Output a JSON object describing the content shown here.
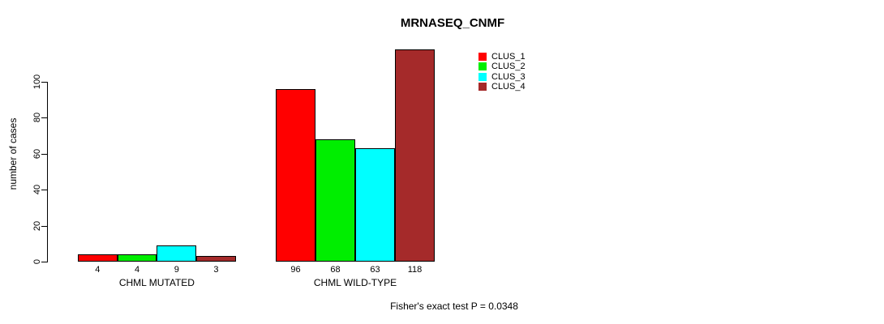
{
  "title": "MRNASEQ_CNMF",
  "ylabel": "number of cases",
  "footnote": "Fisher's exact test P = 0.0348",
  "chart_data": {
    "type": "bar",
    "title": "MRNASEQ_CNMF",
    "xlabel": "",
    "ylabel": "number of cases",
    "categories": [
      "CHML MUTATED",
      "CHML WILD-TYPE"
    ],
    "series": [
      {
        "name": "CLUS_1",
        "color": "#ff0000",
        "values": [
          4,
          96
        ]
      },
      {
        "name": "CLUS_2",
        "color": "#00ee00",
        "values": [
          4,
          68
        ]
      },
      {
        "name": "CLUS_3",
        "color": "#00ffff",
        "values": [
          9,
          63
        ]
      },
      {
        "name": "CLUS_4",
        "color": "#a52a2a",
        "values": [
          3,
          118
        ]
      }
    ],
    "bar_value_labels": [
      [
        "4",
        "4",
        "9",
        "3"
      ],
      [
        "96",
        "68",
        "63",
        "118"
      ]
    ],
    "ylim": [
      0,
      100
    ],
    "yticks": [
      0,
      20,
      40,
      60,
      80,
      100
    ],
    "grid": false,
    "legend_position": "top-right",
    "legend_entries": [
      "CLUS_1",
      "CLUS_2",
      "CLUS_3",
      "CLUS_4"
    ],
    "annotation": "Fisher's exact test P = 0.0348"
  }
}
